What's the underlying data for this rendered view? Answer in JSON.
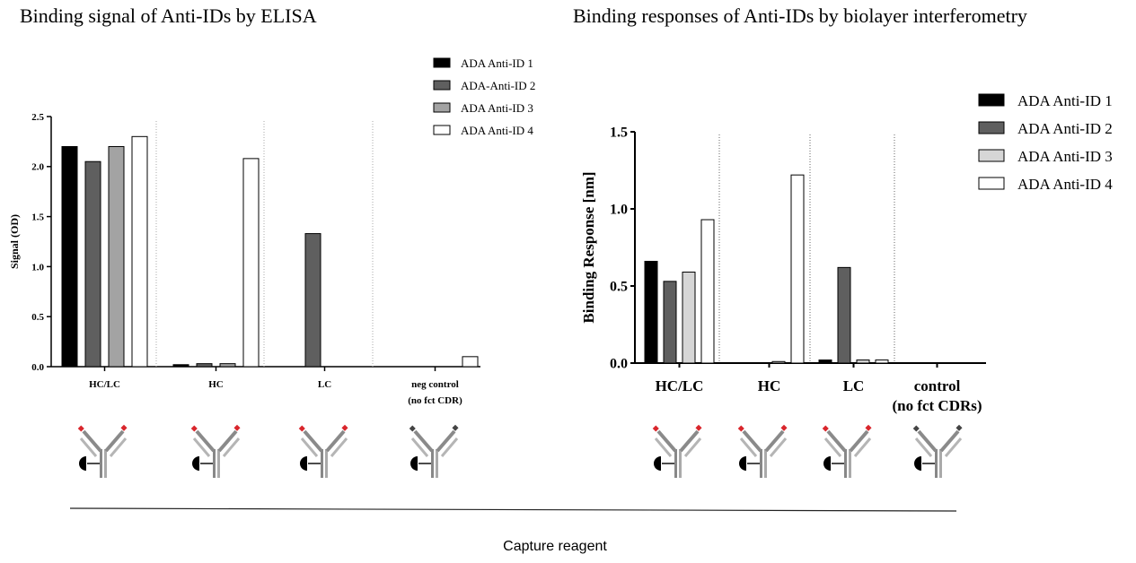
{
  "footer": {
    "label": "Capture reagent"
  },
  "chart_data": [
    {
      "type": "bar",
      "title": "Binding signal of Anti-IDs by ELISA",
      "xlabel": "",
      "ylabel": "Signal (OD)",
      "ylim": [
        0,
        2.5
      ],
      "yticks": [
        "0.0",
        "0.5",
        "1.0",
        "1.5",
        "2.0",
        "2.5"
      ],
      "grid": false,
      "legend": "top-right",
      "categories": [
        {
          "line1": "HC/LC",
          "line2": ""
        },
        {
          "line1": "HC",
          "line2": ""
        },
        {
          "line1": "LC",
          "line2": ""
        },
        {
          "line1": "neg control",
          "line2": "(no fct CDR)"
        }
      ],
      "series": [
        {
          "name": "ADA Anti-ID 1",
          "color": "#000000",
          "values": [
            2.2,
            0.02,
            0.0,
            0.0
          ]
        },
        {
          "name": "ADA-Anti-ID 2",
          "color": "#5f5f5f",
          "values": [
            2.05,
            0.03,
            1.33,
            0.0
          ]
        },
        {
          "name": "ADA Anti-ID 3",
          "color": "#a3a3a3",
          "values": [
            2.2,
            0.03,
            0.0,
            0.0
          ]
        },
        {
          "name": "ADA Anti-ID 4",
          "color": "#ffffff",
          "values": [
            2.3,
            2.08,
            0.0,
            0.1
          ]
        }
      ],
      "antibody_icons": [
        {
          "tip_color": "#d9262c"
        },
        {
          "tip_color": "#d9262c"
        },
        {
          "tip_color": "#d9262c"
        },
        {
          "tip_color": "#444444"
        }
      ]
    },
    {
      "type": "bar",
      "title": "Binding responses of Anti-IDs by biolayer interferometry",
      "xlabel": "",
      "ylabel": "Binding Response [nm]",
      "ylim": [
        0,
        1.5
      ],
      "yticks": [
        "0.0",
        "0.5",
        "1.0",
        "1.5"
      ],
      "grid": false,
      "legend": "top-right",
      "categories": [
        {
          "line1": "HC/LC",
          "line2": ""
        },
        {
          "line1": "HC",
          "line2": ""
        },
        {
          "line1": "LC",
          "line2": ""
        },
        {
          "line1": "control",
          "line2": "(no fct CDRs)"
        }
      ],
      "series": [
        {
          "name": "ADA Anti-ID 1",
          "color": "#000000",
          "values": [
            0.66,
            0.0,
            0.02,
            0.0
          ]
        },
        {
          "name": "ADA Anti-ID 2",
          "color": "#5f5f5f",
          "values": [
            0.53,
            0.0,
            0.62,
            0.0
          ]
        },
        {
          "name": "ADA Anti-ID 3",
          "color": "#d6d6d6",
          "values": [
            0.59,
            0.01,
            0.02,
            0.0
          ]
        },
        {
          "name": "ADA Anti-ID 4",
          "color": "#ffffff",
          "values": [
            0.93,
            1.22,
            0.02,
            0.0
          ]
        }
      ],
      "antibody_icons": [
        {
          "tip_color": "#d9262c"
        },
        {
          "tip_color": "#d9262c"
        },
        {
          "tip_color": "#d9262c"
        },
        {
          "tip_color": "#444444"
        }
      ]
    }
  ]
}
